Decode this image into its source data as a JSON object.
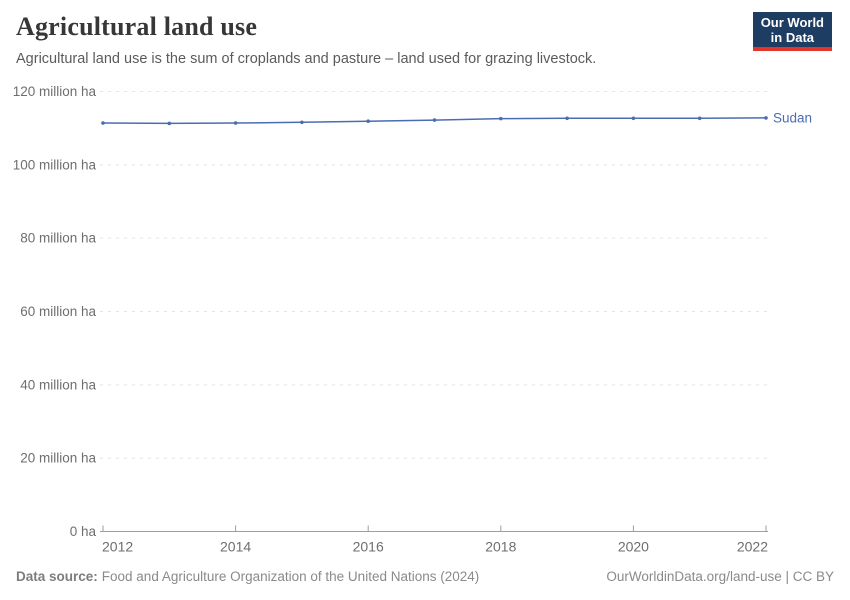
{
  "header": {
    "title": "Agricultural land use",
    "subtitle": "Agricultural land use is the sum of croplands and pasture – land used for grazing livestock.",
    "logo": {
      "line1": "Our World",
      "line2": "in Data",
      "bg_color": "#1d3d63",
      "accent_color": "#e0362c"
    }
  },
  "chart_data": {
    "type": "line",
    "title": "Agricultural land use",
    "xlabel": "",
    "ylabel": "",
    "unit": "million ha",
    "grid": "horizontal-dashed",
    "legend_position": "end-of-line-label",
    "xlim": [
      2012,
      2022
    ],
    "ylim": [
      0,
      120
    ],
    "x": [
      2012,
      2013,
      2014,
      2015,
      2016,
      2017,
      2018,
      2019,
      2020,
      2021,
      2022
    ],
    "series": [
      {
        "name": "Sudan",
        "color": "#4c6cb2",
        "values": [
          111.4,
          111.3,
          111.4,
          111.6,
          111.9,
          112.2,
          112.6,
          112.7,
          112.7,
          112.7,
          112.8
        ]
      }
    ],
    "xticks": [
      2012,
      2014,
      2016,
      2018,
      2020,
      2022
    ],
    "yticks": [
      {
        "value": 0,
        "label": "0 ha"
      },
      {
        "value": 20,
        "label": "20 million ha"
      },
      {
        "value": 40,
        "label": "40 million ha"
      },
      {
        "value": 60,
        "label": "60 million ha"
      },
      {
        "value": 80,
        "label": "80 million ha"
      },
      {
        "value": 100,
        "label": "100 million ha"
      },
      {
        "value": 120,
        "label": "120 million ha"
      }
    ]
  },
  "footer": {
    "source_label": "Data source:",
    "source_text": "Food and Agriculture Organization of the United Nations (2024)",
    "right_text": "OurWorldinData.org/land-use | CC BY"
  },
  "colors": {
    "line": "#4c6cb2",
    "gridline": "#e2e2e2",
    "axis": "#9e9e9e",
    "tick_label": "#6e6e6e"
  }
}
